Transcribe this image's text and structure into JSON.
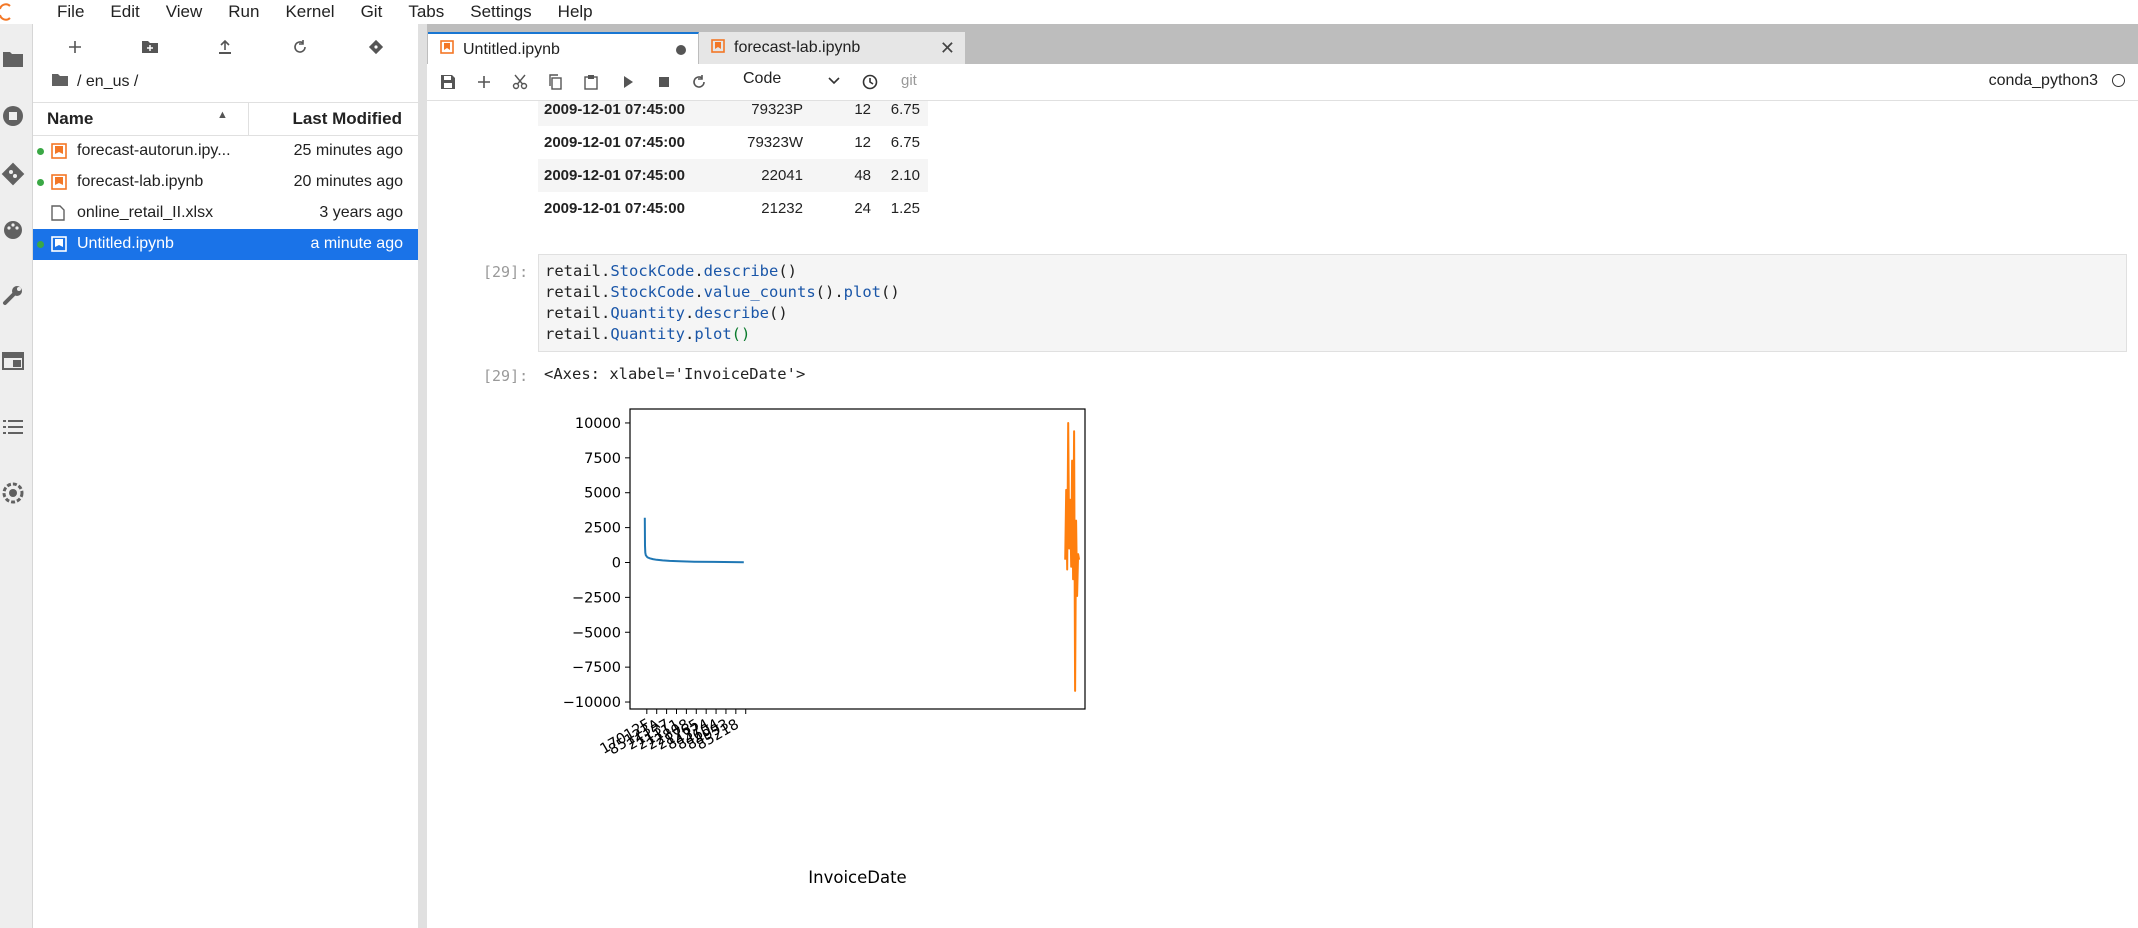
{
  "menu": [
    "File",
    "Edit",
    "View",
    "Run",
    "Kernel",
    "Git",
    "Tabs",
    "Settings",
    "Help"
  ],
  "activity_icons": [
    "folder-icon",
    "running-icon",
    "git-icon",
    "palette-icon",
    "wrench-icon",
    "tabs-icon",
    "toc-icon",
    "extension-icon"
  ],
  "filebrowser": {
    "breadcrumb": "/ en_us /",
    "col_name": "Name",
    "col_modified": "Last Modified",
    "files": [
      {
        "name": "forecast-autorun.ipy...",
        "modified": "25 minutes ago",
        "running": true,
        "type": "notebook",
        "selected": false
      },
      {
        "name": "forecast-lab.ipynb",
        "modified": "20 minutes ago",
        "running": true,
        "type": "notebook",
        "selected": false
      },
      {
        "name": "online_retail_II.xlsx",
        "modified": "3 years ago",
        "running": false,
        "type": "file",
        "selected": false
      },
      {
        "name": "Untitled.ipynb",
        "modified": "a minute ago",
        "running": true,
        "type": "notebook",
        "selected": true
      }
    ]
  },
  "tabs": [
    {
      "label": "Untitled.ipynb",
      "active": true,
      "dirty": true
    },
    {
      "label": "forecast-lab.ipynb",
      "active": false,
      "dirty": false
    }
  ],
  "toolbar": {
    "cell_type": "Code",
    "git_label": "git",
    "kernel": "conda_python3"
  },
  "dataframe_rows": [
    {
      "index": "2009-12-01 07:45:00",
      "stock": "79323P",
      "qty": "12",
      "price": "6.75"
    },
    {
      "index": "2009-12-01 07:45:00",
      "stock": "79323W",
      "qty": "12",
      "price": "6.75"
    },
    {
      "index": "2009-12-01 07:45:00",
      "stock": "22041",
      "qty": "48",
      "price": "2.10"
    },
    {
      "index": "2009-12-01 07:45:00",
      "stock": "21232",
      "qty": "24",
      "price": "1.25"
    }
  ],
  "cell": {
    "in_prompt": "[29]:",
    "out_prompt": "[29]:",
    "code": [
      [
        [
          "retail.",
          ""
        ],
        [
          "StockCode",
          "attr"
        ],
        [
          ".",
          ""
        ],
        [
          "describe",
          "attr"
        ],
        [
          "()",
          ""
        ]
      ],
      [
        [
          "retail.",
          ""
        ],
        [
          "StockCode",
          "attr"
        ],
        [
          ".",
          ""
        ],
        [
          "value_counts",
          "attr"
        ],
        [
          "().",
          ""
        ],
        [
          "plot",
          "attr"
        ],
        [
          "()",
          ""
        ]
      ],
      [
        [
          "retail.",
          ""
        ],
        [
          "Quantity",
          "attr"
        ],
        [
          ".",
          ""
        ],
        [
          "describe",
          "attr"
        ],
        [
          "()",
          ""
        ]
      ],
      [
        [
          "retail.",
          ""
        ],
        [
          "Quantity",
          "attr"
        ],
        [
          ".",
          ""
        ],
        [
          "plot",
          "attr"
        ],
        [
          "()",
          "call"
        ]
      ]
    ],
    "output_text": "<Axes: xlabel='InvoiceDate'>"
  },
  "chart_data": {
    "type": "line",
    "xlabel": "InvoiceDate",
    "ylabel": "",
    "ylim": [
      -10500,
      11000
    ],
    "yticks": [
      10000,
      7500,
      5000,
      2500,
      0,
      -2500,
      -5000,
      -7500,
      -10000
    ],
    "ytick_labels": [
      "10000",
      "7500",
      "5000",
      "2500",
      "0",
      "−2500",
      "−5000",
      "−7500",
      "−10000"
    ],
    "xtick_labels": [
      "17012F",
      "85123A",
      "21137",
      "21111",
      "22808",
      "21765",
      "84374",
      "84604",
      "84993",
      "85218"
    ],
    "series": [
      {
        "color": "#1f77b4",
        "x": [
          0,
          0.2,
          0.5,
          1,
          2,
          3,
          5,
          8,
          12,
          18,
          25,
          35,
          50,
          70,
          90,
          100
        ],
        "y": [
          3200,
          1200,
          700,
          520,
          420,
          360,
          300,
          240,
          190,
          150,
          115,
          85,
          60,
          40,
          25,
          15
        ]
      },
      {
        "color": "#ff7f0e",
        "x": [
          425,
          426,
          427,
          428,
          429,
          430,
          431,
          432,
          433,
          434,
          435,
          436,
          437,
          438,
          439
        ],
        "y": [
          200,
          5200,
          -500,
          10000,
          1000,
          4500,
          -300,
          7300,
          -1200,
          9400,
          -9200,
          3000,
          -2400,
          600,
          200
        ]
      }
    ]
  }
}
